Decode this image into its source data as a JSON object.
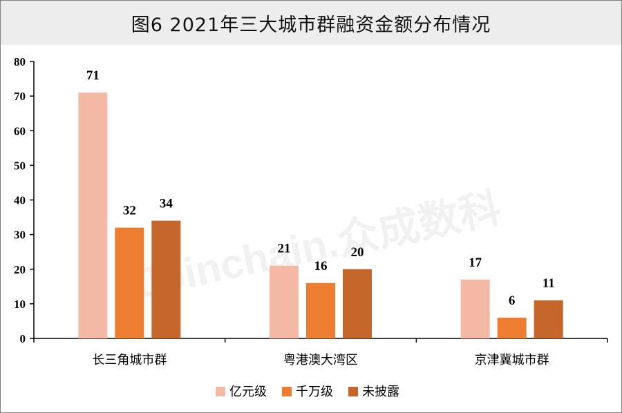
{
  "title": "图6  2021年三大城市群融资金额分布情况",
  "watermark": "Joinchain.众成数科",
  "chart_data": {
    "type": "bar",
    "categories": [
      "长三角城市群",
      "粤港澳大湾区",
      "京津冀城市群"
    ],
    "series": [
      {
        "name": "亿元级",
        "color": "#f4b9a4",
        "values": [
          71,
          21,
          17
        ]
      },
      {
        "name": "千万级",
        "color": "#ed7d31",
        "values": [
          32,
          16,
          6
        ]
      },
      {
        "name": "未披露",
        "color": "#c5662a",
        "values": [
          34,
          20,
          11
        ]
      }
    ],
    "ylim": [
      0,
      80
    ],
    "yticks": [
      0,
      10,
      20,
      30,
      40,
      50,
      60,
      70,
      80
    ],
    "grid": false,
    "legend_position": "bottom"
  }
}
